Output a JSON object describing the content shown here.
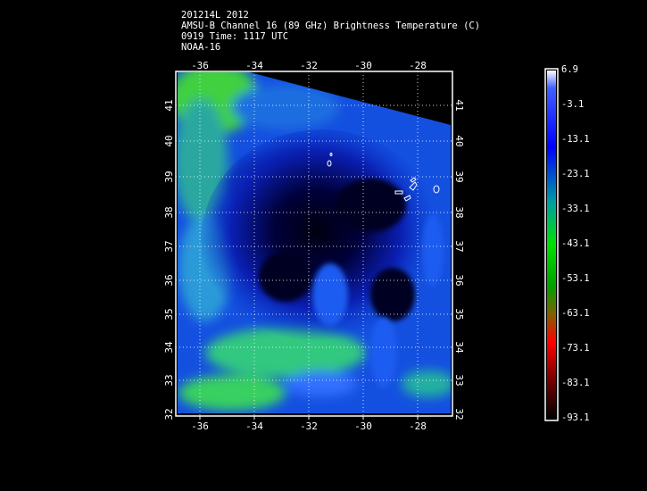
{
  "header": {
    "line1": "201214L 2012",
    "line2": "AMSU-B Channel 16 (89 GHz) Brightness Temperature (C)",
    "line3": "0919 Time: 1117 UTC",
    "line4": "NOAA-16"
  },
  "map": {
    "lon_ticks": [
      "-36",
      "-34",
      "-32",
      "-30",
      "-28"
    ],
    "lat_ticks": [
      "41",
      "40",
      "39",
      "38",
      "37",
      "36",
      "35",
      "34",
      "33",
      "32"
    ],
    "lon_range": [
      -36.7,
      -26.6
    ],
    "lat_range": [
      31.9,
      42.0
    ]
  },
  "colorbar": {
    "labels": [
      "6.9",
      "-3.1",
      "-13.1",
      "-23.1",
      "-33.1",
      "-43.1",
      "-53.1",
      "-63.1",
      "-73.1",
      "-83.1",
      "-93.1"
    ],
    "colors": [
      "#ffffff",
      "#0000ff",
      "#00c000",
      "#ff0000",
      "#000000"
    ]
  }
}
